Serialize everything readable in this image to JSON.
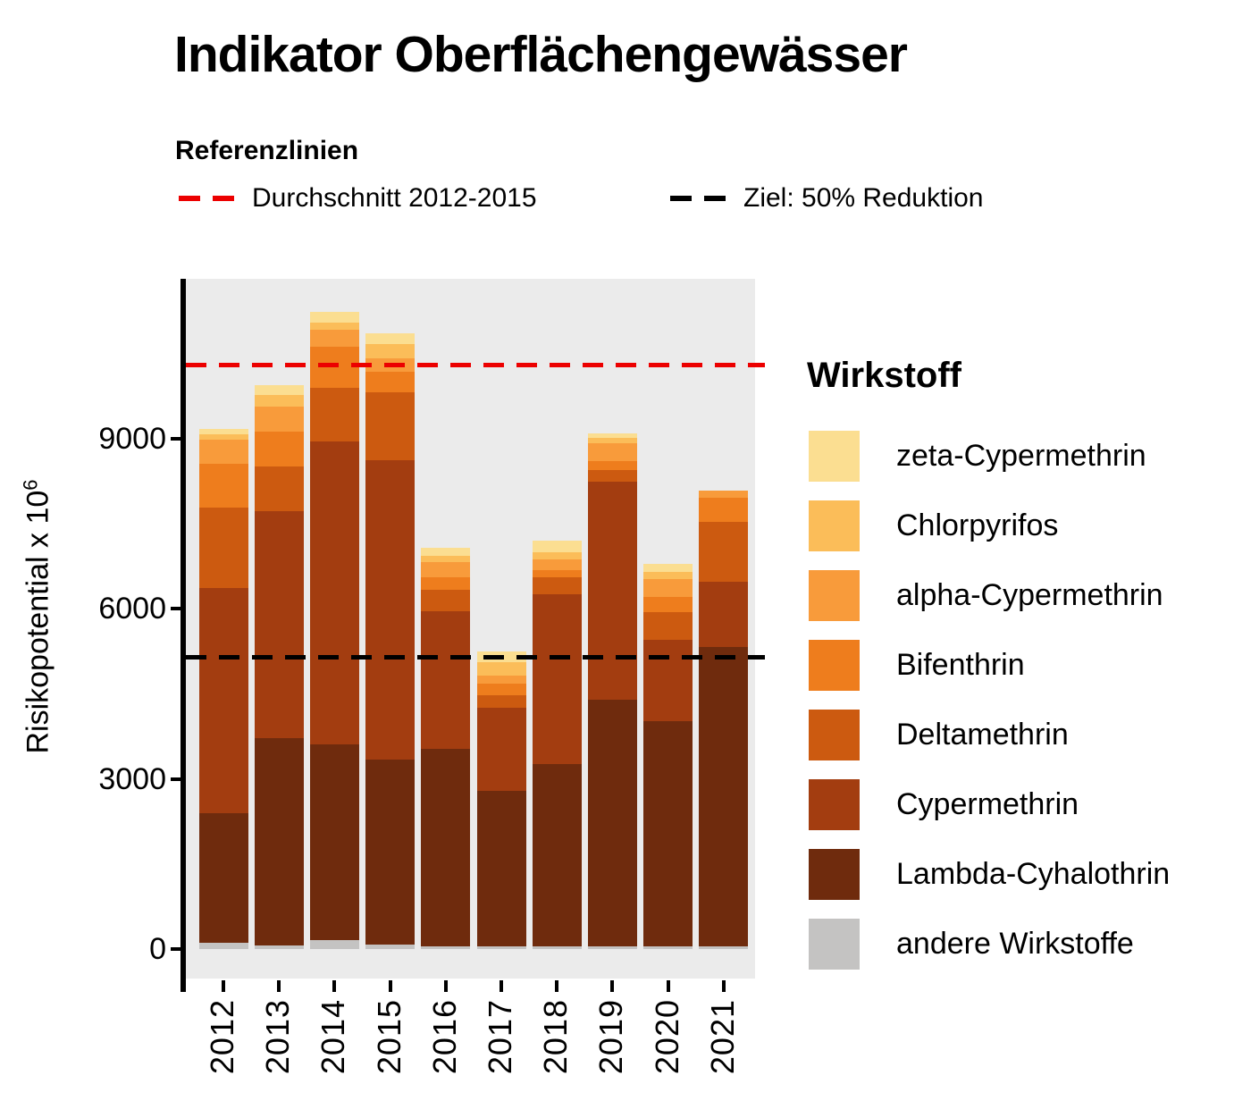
{
  "title": "Indikator Oberflächengewässer",
  "reference_legend": {
    "heading": "Referenzlinien",
    "items": [
      {
        "label": "Durchschnitt 2012-2015",
        "color": "#ec0000"
      },
      {
        "label": "Ziel: 50% Reduktion",
        "color": "#000000"
      }
    ]
  },
  "y_axis": {
    "title_main": "Risikopotential  x 10",
    "title_exp": "6",
    "tick_labels": [
      "0",
      "3000",
      "6000",
      "9000"
    ]
  },
  "legend": {
    "title": "Wirkstoff",
    "items": [
      {
        "label": "zeta-Cypermethrin",
        "color": "#fbde91"
      },
      {
        "label": "Chlorpyrifos",
        "color": "#fbbd59"
      },
      {
        "label": "alpha-Cypermethrin",
        "color": "#f89b3b"
      },
      {
        "label": "Bifenthrin",
        "color": "#ee7d1d"
      },
      {
        "label": "Deltamethrin",
        "color": "#cc5a10"
      },
      {
        "label": "Cypermethrin",
        "color": "#a33d10"
      },
      {
        "label": "Lambda-Cyhalothrin",
        "color": "#6f2b0d"
      },
      {
        "label": "andere Wirkstoffe",
        "color": "#c4c3c2"
      }
    ]
  },
  "chart_data": {
    "type": "bar",
    "stacked": true,
    "title": "Indikator Oberflächengewässer",
    "xlabel": "",
    "ylabel": "Risikopotential x 10^6",
    "categories": [
      "2012",
      "2013",
      "2014",
      "2015",
      "2016",
      "2017",
      "2018",
      "2019",
      "2020",
      "2021"
    ],
    "yticks": [
      0,
      3000,
      6000,
      9000
    ],
    "ylim": [
      0,
      11800
    ],
    "grid": false,
    "legend_position": "right",
    "panel_background": "#ebebeb",
    "series": [
      {
        "name": "andere Wirkstoffe",
        "color": "#c4c3c2",
        "values": [
          105,
          60,
          150,
          80,
          40,
          50,
          50,
          50,
          50,
          50
        ]
      },
      {
        "name": "Lambda-Cyhalothrin",
        "color": "#6f2b0d",
        "values": [
          2285,
          3660,
          3460,
          3265,
          3490,
          2745,
          3210,
          4350,
          3970,
          5270
        ]
      },
      {
        "name": "Cypermethrin",
        "color": "#a33d10",
        "values": [
          3965,
          3990,
          5340,
          5265,
          2425,
          1455,
          3000,
          3830,
          1435,
          1160
        ]
      },
      {
        "name": "Deltamethrin",
        "color": "#cc5a10",
        "values": [
          1420,
          790,
          940,
          1195,
          370,
          230,
          285,
          215,
          475,
          1050
        ]
      },
      {
        "name": "Bifenthrin",
        "color": "#ee7d1d",
        "values": [
          780,
          622,
          730,
          365,
          230,
          190,
          130,
          150,
          280,
          425
        ]
      },
      {
        "name": "alpha-Cypermethrin",
        "color": "#f89b3b",
        "values": [
          430,
          440,
          290,
          235,
          260,
          155,
          185,
          315,
          315,
          120
        ]
      },
      {
        "name": "Chlorpyrifos",
        "color": "#fbbd59",
        "values": [
          80,
          210,
          130,
          260,
          120,
          235,
          130,
          105,
          115,
          0
        ]
      },
      {
        "name": "zeta-Cypermethrin",
        "color": "#fbde91",
        "values": [
          100,
          160,
          185,
          185,
          140,
          180,
          210,
          65,
          155,
          0
        ]
      }
    ],
    "reference_lines": [
      {
        "label": "Durchschnitt 2012-2015",
        "value": 10300,
        "color": "#ec0000",
        "style": "dashed"
      },
      {
        "label": "Ziel: 50% Reduktion",
        "value": 5150,
        "color": "#000000",
        "style": "dashed"
      }
    ]
  }
}
